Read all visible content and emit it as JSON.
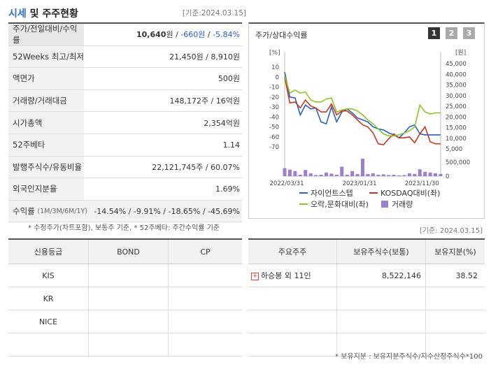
{
  "header": {
    "title_part1": "시세",
    "title_part2": " 및 주주현황",
    "base_date": "[기준:2024.03.15]"
  },
  "quote_table": [
    {
      "label": "주가/전일대비/수익률",
      "price": "10,640",
      "unit": "원",
      "sep1": " / ",
      "change": "-660원",
      "sep2": " / ",
      "rate": "-5.84%"
    },
    {
      "label": "52Weeks 최고/최저",
      "value": "21,450원 / 8,910원"
    },
    {
      "label": "액면가",
      "value": "500원"
    },
    {
      "label": "거래량/거래대금",
      "value": "148,172주 / 16억원"
    },
    {
      "label": "시가총액",
      "value": "2,354억원"
    },
    {
      "label": "52주베타",
      "value": "1.14"
    },
    {
      "label": "발행주식수/유동비율",
      "value": "22,121,745주 / 60.07%"
    },
    {
      "label": "외국인지분율",
      "value": "1.69%"
    },
    {
      "label": "수익률",
      "label_sub": "(1M/3M/6M/1Y)",
      "value": "-14.54% / -9.91% / -18.65% / -45.69%"
    }
  ],
  "note_left": "* 수정주가(차트포함), 보통주 기준, * 52주베타: 주간수익률 기준",
  "chart_panel": {
    "title": "주가/상대수익률",
    "tabs": [
      "1",
      "2",
      "3"
    ]
  },
  "chart_data": {
    "type": "line",
    "left_unit": "[%]",
    "right_unit": "[원]",
    "left_ticks": [
      "10",
      "0",
      "-10",
      "-20",
      "-30",
      "-40",
      "-50",
      "-60",
      "-70"
    ],
    "right_ticks": [
      "45,000",
      "40,000",
      "35,000",
      "30,000",
      "25,000",
      "20,000",
      "15,000",
      "10,000",
      "5,000"
    ],
    "volume_ticks": [
      "500,000",
      "0"
    ],
    "x_ticks": [
      "2022/03/31",
      "2023/01/31",
      "2023/11/30"
    ],
    "left_ylim": [
      -70,
      10
    ],
    "right_ylim": [
      5000,
      45000
    ],
    "x": [
      0,
      1,
      2,
      3,
      4,
      5,
      6,
      7,
      8,
      9,
      10,
      11,
      12,
      13,
      14,
      15,
      16,
      17,
      18,
      19,
      20,
      21,
      22,
      23,
      24,
      25,
      26,
      27,
      28,
      29,
      30
    ],
    "series": [
      {
        "name": "자이언트스텝",
        "color": "#2a5fc4",
        "axis": "left",
        "values": [
          5,
          -20,
          -21,
          -38,
          -28,
          -32,
          -31,
          -45,
          -47,
          -30,
          -45,
          -35,
          -32,
          -36,
          -41,
          -43,
          -45,
          -50,
          -52,
          -53,
          -56,
          -58,
          -61,
          -56,
          -50,
          -48,
          -57,
          -58,
          -58,
          -58,
          -58
        ]
      },
      {
        "name": "KOSDAQ대비(좌)",
        "color": "#c9391e",
        "axis": "left",
        "values": [
          0,
          -26,
          -25,
          -31,
          -23,
          -29,
          -31,
          -35,
          -35,
          -27,
          -38,
          -34,
          -34,
          -38,
          -43,
          -48,
          -50,
          -56,
          -67,
          -68,
          -62,
          -57,
          -61,
          -61,
          -60,
          -66,
          -57,
          -50,
          -65,
          -67,
          -67
        ]
      },
      {
        "name": "오락,문화대비(좌)",
        "color": "#8cc428",
        "axis": "left",
        "values": [
          1,
          -16,
          -13,
          -16,
          -15,
          -23,
          -25,
          -25,
          -22,
          -21,
          -35,
          -33,
          -32,
          -32,
          -34,
          -38,
          -43,
          -47,
          -52,
          -57,
          -59,
          -59,
          -58,
          -56,
          -54,
          -50,
          -28,
          -35,
          -37,
          -36,
          -36
        ]
      }
    ],
    "volume": {
      "name": "거래량",
      "color": "#9b7fd1",
      "values": [
        110000,
        90000,
        70000,
        20000,
        85000,
        40000,
        15000,
        20000,
        50000,
        35000,
        20000,
        130000,
        20000,
        70000,
        30000,
        240000,
        30000,
        40000,
        20000,
        25000,
        15000,
        20000,
        10000,
        15000,
        40000,
        30000,
        95000,
        60000,
        50000,
        40000,
        30000
      ]
    },
    "volume_ylim": [
      0,
      500000
    ]
  },
  "note_right_date": "[기준: 2024.03.15]",
  "credit_table": {
    "headers": [
      "신용등급",
      "BOND",
      "CP"
    ],
    "rows": [
      [
        "KIS",
        "",
        ""
      ],
      [
        "KR",
        "",
        ""
      ],
      [
        "NICE",
        "",
        ""
      ],
      [
        "",
        "",
        ""
      ]
    ]
  },
  "holder_table": {
    "headers": [
      "주요주주",
      "보유주식수(보통)",
      "보유지분(%)"
    ],
    "rows": [
      {
        "icon": "plus-icon",
        "name": "하승봉 외 11인",
        "shares": "8,522,146",
        "pct": "38.52"
      },
      {
        "name": "",
        "shares": "",
        "pct": ""
      },
      {
        "name": "",
        "shares": "",
        "pct": ""
      },
      {
        "name": "",
        "shares": "",
        "pct": ""
      }
    ]
  },
  "note_bottom": "* 보유지분 : 보유지분주식수/지수산정주식수*100"
}
